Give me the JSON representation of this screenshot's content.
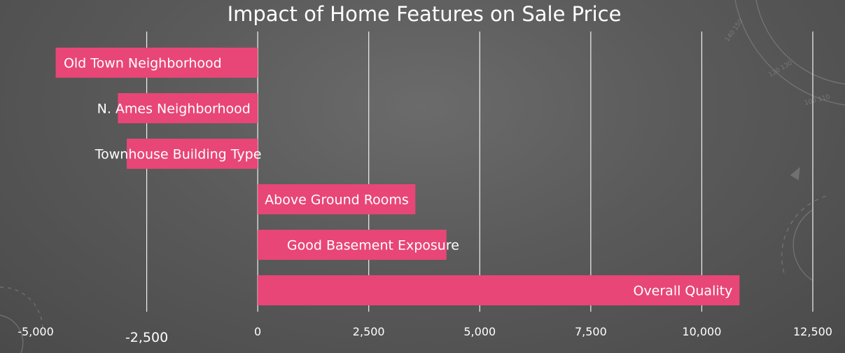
{
  "chart_data": {
    "type": "bar",
    "orientation": "horizontal",
    "title": "Impact of Home Features on Sale Price",
    "categories": [
      "Old Town Neighborhood",
      "N. Ames Neighborhood",
      "Townhouse Building Type",
      "Above Ground Rooms",
      "Good Basement Exposure",
      "Overall Quality"
    ],
    "values": [
      -4550,
      -3150,
      -2950,
      3550,
      4250,
      10850
    ],
    "xlim": [
      -5000,
      12500
    ],
    "xticks": [
      "-5,000",
      "-2,500",
      "0",
      "2,500",
      "5,000",
      "7,500",
      "10,000",
      "12,500"
    ],
    "xtick_values": [
      -5000,
      -2500,
      0,
      2500,
      5000,
      7500,
      10000,
      12500
    ],
    "grid": "vertical",
    "bar_color": "#e84677"
  }
}
